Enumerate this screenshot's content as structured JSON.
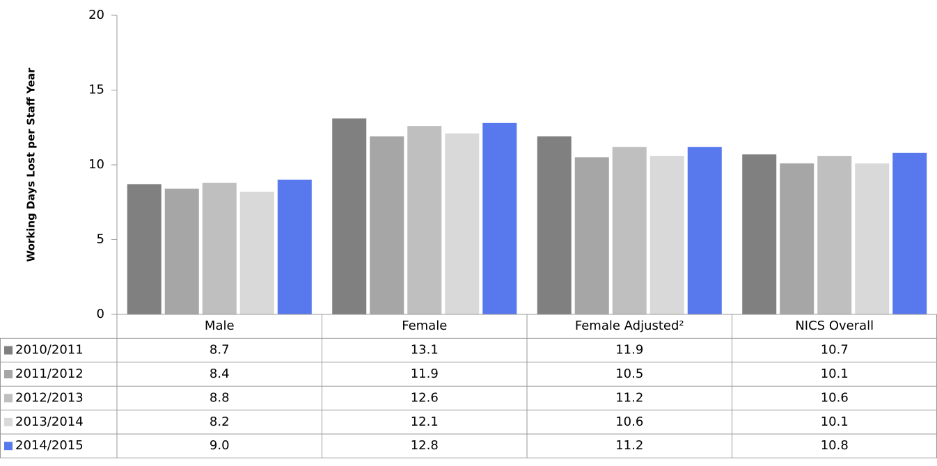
{
  "chart_data": {
    "type": "bar",
    "y_axis_label": "Working  Days Lost per Staff Year",
    "categories": [
      "Male",
      "Female",
      "Female Adjusted²",
      "NICS Overall"
    ],
    "series": [
      {
        "name": "2010/2011",
        "color": "#808080",
        "values": [
          8.7,
          13.1,
          11.9,
          10.7
        ]
      },
      {
        "name": "2011/2012",
        "color": "#a6a6a6",
        "values": [
          8.4,
          11.9,
          10.5,
          10.1
        ]
      },
      {
        "name": "2012/2013",
        "color": "#bfbfbf",
        "values": [
          8.8,
          12.6,
          11.2,
          10.6
        ]
      },
      {
        "name": "2013/2014",
        "color": "#d9d9d9",
        "values": [
          8.2,
          12.1,
          10.6,
          10.1
        ]
      },
      {
        "name": "2014/2015",
        "color": "#5878ee",
        "values": [
          9,
          12.8,
          11.2,
          10.8
        ],
        "value_labels": [
          "9.0",
          "12.8",
          "11.2",
          "10.8"
        ]
      }
    ],
    "ylim": [
      0,
      20
    ],
    "yticks": [
      0,
      5,
      10,
      15,
      20
    ]
  }
}
